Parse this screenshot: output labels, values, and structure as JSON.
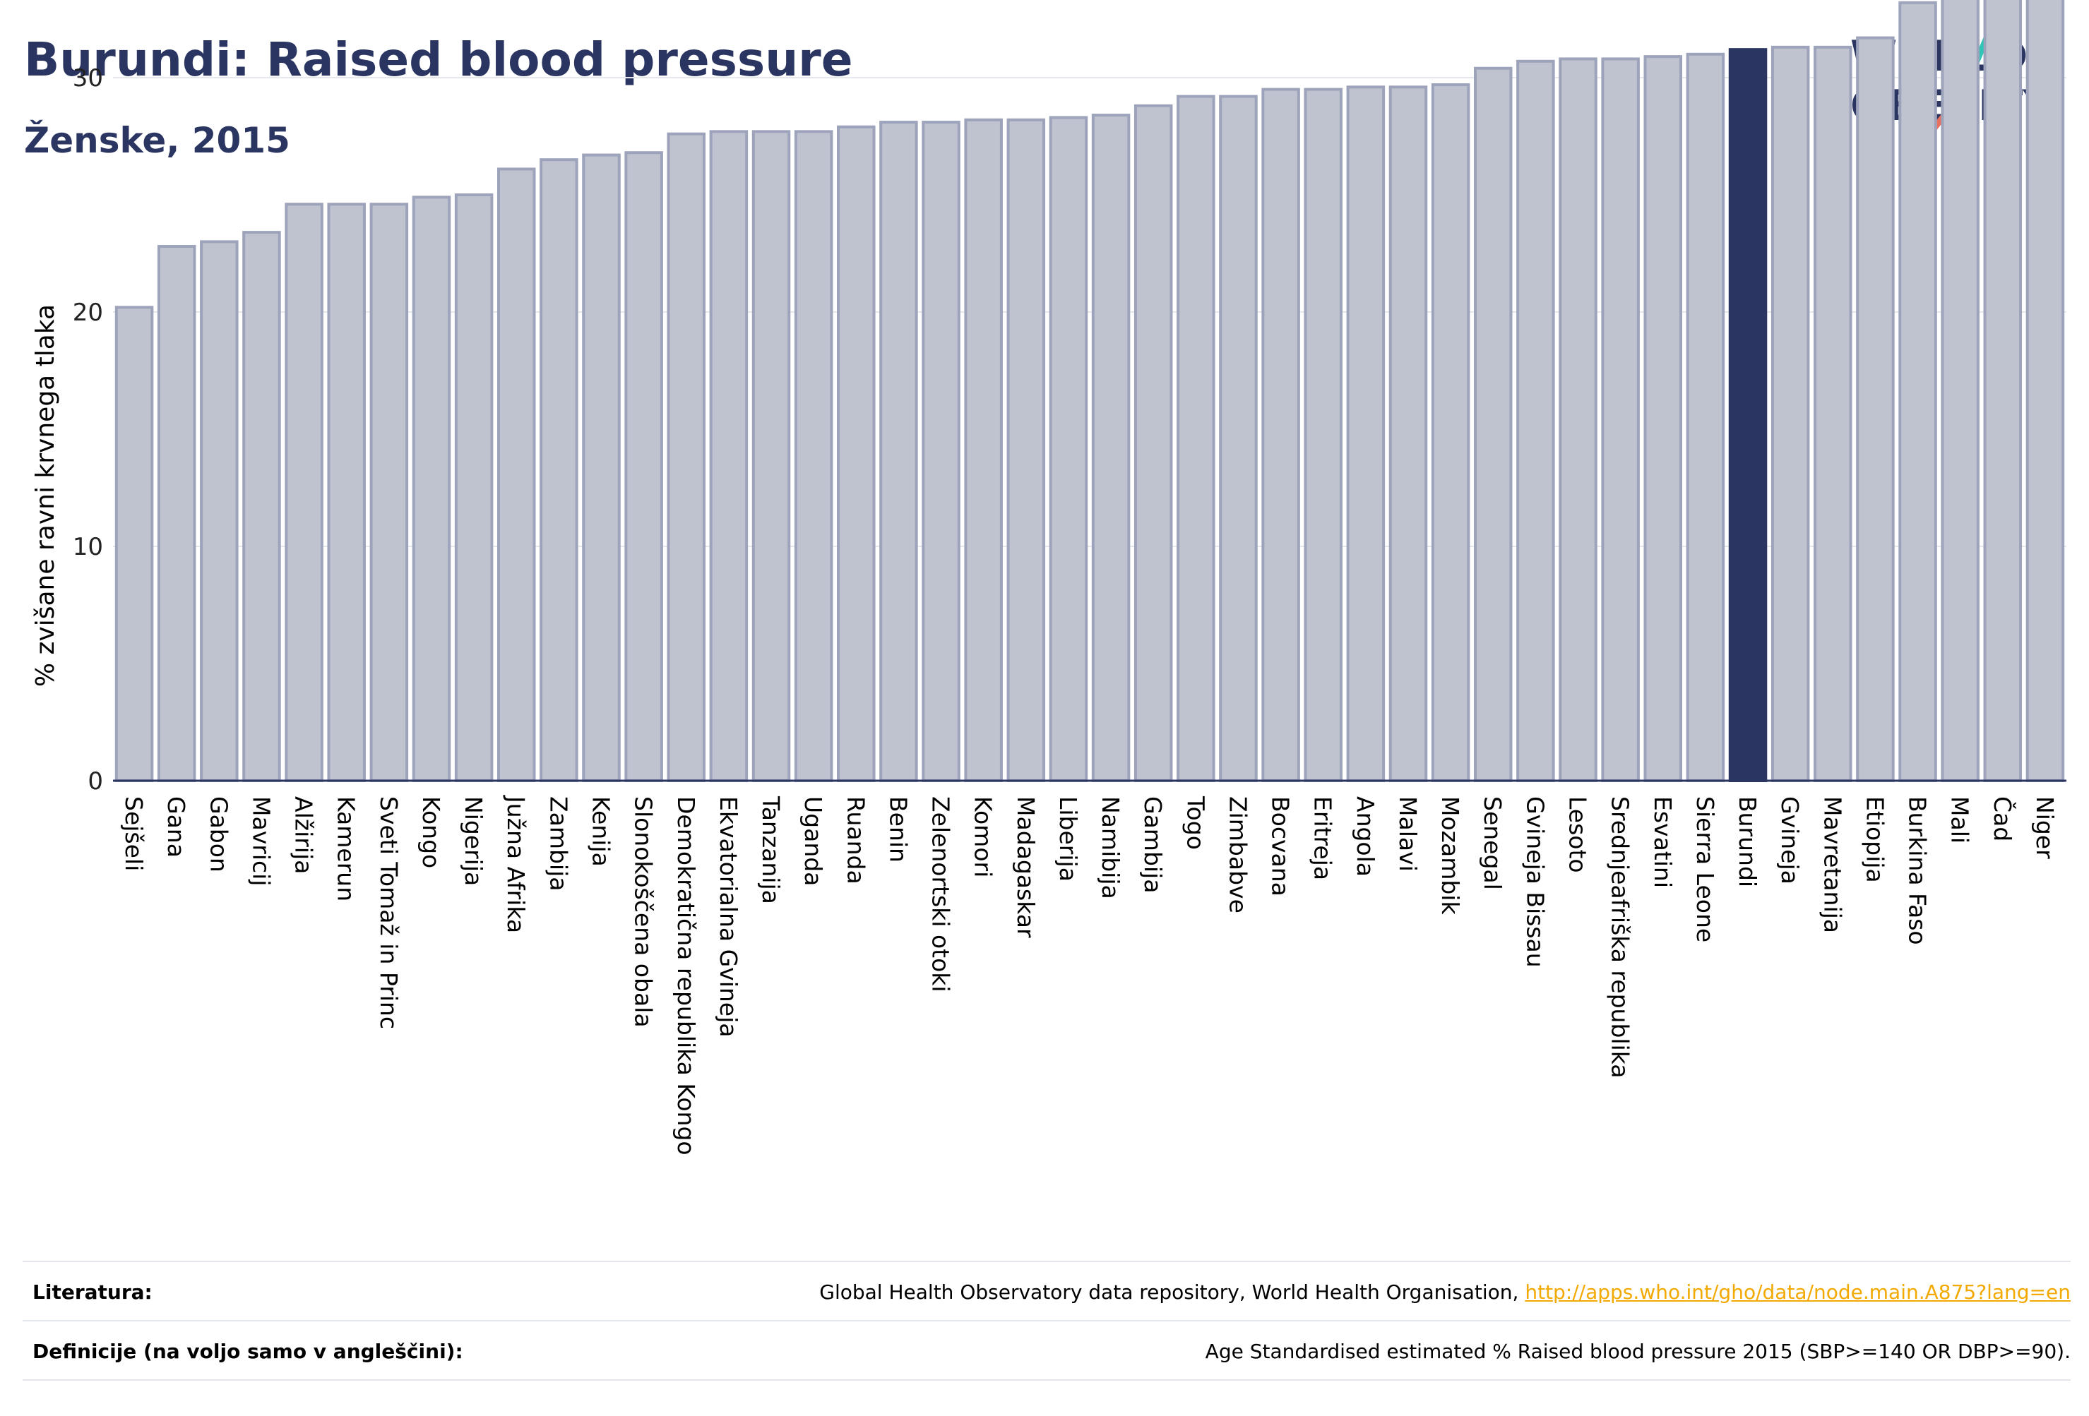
{
  "header": {
    "title": "Burundi: Raised blood pressure",
    "subtitle": "Ženske, 2015"
  },
  "logo": {
    "line1": "WORLD",
    "line2": "OBESITY"
  },
  "footer": {
    "reference_label": "Literatura:",
    "reference_text": "Global Health Observatory data repository, World Health Organisation, ",
    "reference_link": "http://apps.who.int/gho/data/node.main.A875?lang=en",
    "definition_label": "Definicije (na voljo samo v angleščini):",
    "definition_text": "Age Standardised estimated % Raised blood pressure 2015 (SBP>=140 OR DBP>=90)."
  },
  "colors": {
    "bar": "#bfc3d0",
    "bar_stroke": "#9da3ba",
    "highlight": "#2b3561",
    "grid": "#e6e8ee",
    "title": "#2b3561"
  },
  "chart_data": {
    "type": "bar",
    "ylabel": "% zvišane ravni krvnega tlaka",
    "ylim": [
      0,
      36
    ],
    "yticks": [
      0,
      10,
      20,
      30
    ],
    "grid": true,
    "highlight": "Burundi",
    "categories": [
      "Sejšeli",
      "Gana",
      "Gabon",
      "Mavricij",
      "Alžirija",
      "Kamerun",
      "Sveti Tomaž in Princ",
      "Kongo",
      "Nigerija",
      "Južna Afrika",
      "Zambija",
      "Kenija",
      "Slonokoščena obala",
      "Demokratična republika Kongo",
      "Ekvatorialna Gvineja",
      "Tanzanija",
      "Uganda",
      "Ruanda",
      "Benin",
      "Zelenortski otoki",
      "Komori",
      "Madagaskar",
      "Liberija",
      "Namibija",
      "Gambija",
      "Togo",
      "Zimbabve",
      "Bocvana",
      "Eritreja",
      "Angola",
      "Malavi",
      "Mozambik",
      "Senegal",
      "Gvineja Bissau",
      "Lesoto",
      "Srednjeafriška republika",
      "Esvatini",
      "Sierra Leone",
      "Burundi",
      "Gvineja",
      "Mavretanija",
      "Etiopija",
      "Burkina Faso",
      "Mali",
      "Čad",
      "Niger"
    ],
    "values": [
      20.2,
      22.8,
      23.0,
      23.4,
      24.6,
      24.6,
      24.6,
      24.9,
      25.0,
      26.1,
      26.5,
      26.7,
      26.8,
      27.6,
      27.7,
      27.7,
      27.7,
      27.9,
      28.1,
      28.1,
      28.2,
      28.2,
      28.3,
      28.4,
      28.8,
      29.2,
      29.2,
      29.5,
      29.5,
      29.6,
      29.6,
      29.7,
      30.4,
      30.7,
      30.8,
      30.8,
      30.9,
      31.0,
      31.2,
      31.3,
      31.3,
      31.7,
      33.2,
      33.6,
      33.8,
      35.8
    ]
  }
}
